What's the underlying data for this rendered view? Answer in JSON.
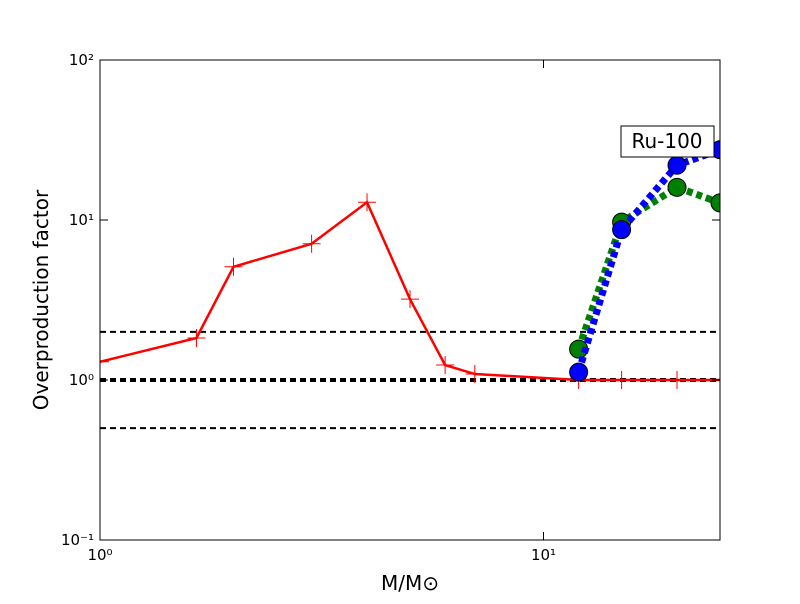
{
  "chart_data": {
    "type": "line",
    "xlabel": "M/M⊙",
    "ylabel": "Overproduction factor",
    "annotation": "Ru-100",
    "xscale": "log",
    "yscale": "log",
    "xlim": [
      1,
      25
    ],
    "ylim": [
      0.1,
      100
    ],
    "xticks": [
      {
        "value": 1,
        "label": "10⁰"
      },
      {
        "value": 10,
        "label": "10¹"
      }
    ],
    "yticks": [
      {
        "value": 0.1,
        "label": "10⁻¹"
      },
      {
        "value": 1,
        "label": "10⁰"
      },
      {
        "value": 10,
        "label": "10¹"
      },
      {
        "value": 100,
        "label": "10²"
      }
    ],
    "hlines": [
      0.5,
      1,
      2
    ],
    "series": [
      {
        "color": "#ff0000",
        "marker": "+",
        "linestyle": "solid",
        "x": [
          1,
          1.65,
          2,
          3,
          4,
          5,
          6,
          7,
          12,
          15,
          20,
          25
        ],
        "values": [
          1.3,
          1.83,
          5.1,
          7.1,
          12.9,
          3.2,
          1.24,
          1.09,
          1.0,
          1.0,
          1.0,
          1.0
        ]
      },
      {
        "color": "#008000",
        "marker": "o",
        "linestyle": "dotted",
        "x": [
          12,
          15,
          20,
          25
        ],
        "values": [
          1.56,
          9.7,
          16,
          12.8
        ]
      },
      {
        "color": "#0000ff",
        "marker": "o",
        "linestyle": "dotted",
        "x": [
          12,
          15,
          20,
          25
        ],
        "values": [
          1.12,
          8.7,
          22,
          27.5
        ]
      }
    ]
  }
}
